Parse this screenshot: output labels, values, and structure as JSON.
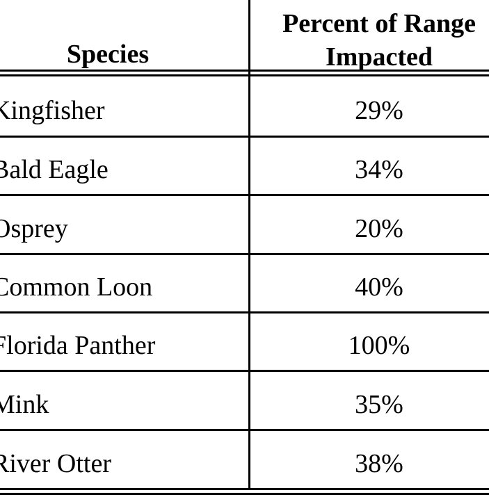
{
  "table": {
    "header": [
      "Species",
      "Percent of Range Impacted"
    ],
    "rows": [
      [
        "Kingfisher",
        "29%"
      ],
      [
        "Bald Eagle",
        "34%"
      ],
      [
        "Osprey",
        "20%"
      ],
      [
        "Common Loon",
        "40%"
      ],
      [
        "Florida Panther",
        "100%"
      ],
      [
        "Mink",
        "35%"
      ],
      [
        "River Otter",
        "38%"
      ]
    ]
  }
}
